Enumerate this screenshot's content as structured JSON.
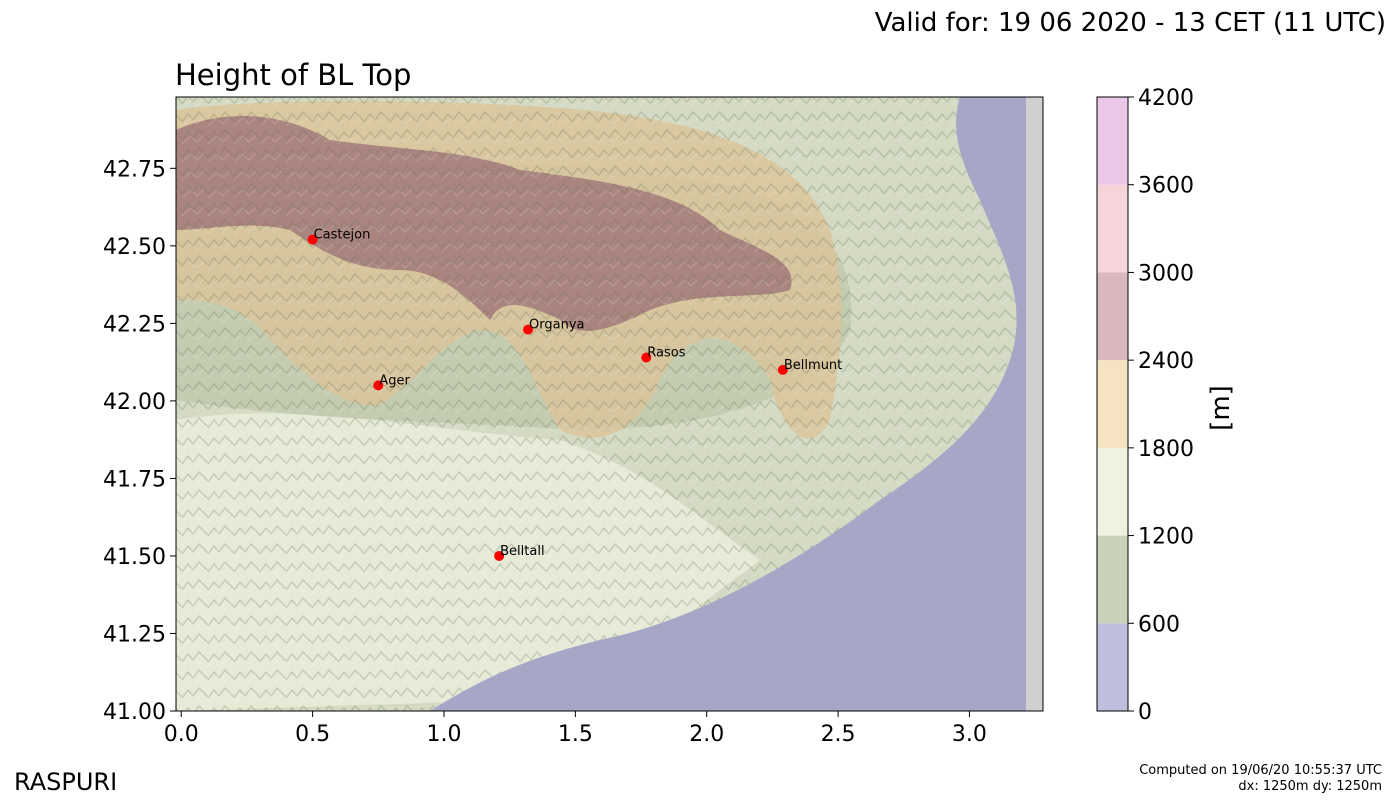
{
  "header": {
    "valid": "Valid for: 19 06 2020 - 13 CET (11 UTC)",
    "title": "Height of BL Top"
  },
  "axes": {
    "x_ticks": [
      "0.0",
      "0.5",
      "1.0",
      "1.5",
      "2.0",
      "2.5",
      "3.0"
    ],
    "x_values": [
      0.0,
      0.5,
      1.0,
      1.5,
      2.0,
      2.5,
      3.0
    ],
    "y_ticks": [
      "41.00",
      "41.25",
      "41.50",
      "41.75",
      "42.00",
      "42.25",
      "42.50",
      "42.75"
    ],
    "y_values": [
      41.0,
      41.25,
      41.5,
      41.75,
      42.0,
      42.25,
      42.5,
      42.75
    ],
    "xlim": [
      -0.02,
      3.28
    ],
    "ylim": [
      41.0,
      42.98
    ]
  },
  "colorbar": {
    "label": "[m]",
    "ticks": [
      "0",
      "600",
      "1200",
      "1800",
      "2400",
      "3000",
      "3600",
      "4200"
    ],
    "colors": [
      "#bfbfdd",
      "#c9d1b8",
      "#eef3df",
      "#f5e3c2",
      "#d8b8bc",
      "#f6d4da",
      "#ebc8e7"
    ]
  },
  "locations": [
    {
      "name": "Castejon",
      "x": 0.5,
      "y": 42.52
    },
    {
      "name": "Organya",
      "x": 1.32,
      "y": 42.23
    },
    {
      "name": "Rasos",
      "x": 1.77,
      "y": 42.14
    },
    {
      "name": "Ager",
      "x": 0.75,
      "y": 42.05
    },
    {
      "name": "Bellmunt",
      "x": 2.29,
      "y": 42.1
    },
    {
      "name": "Belltall",
      "x": 1.21,
      "y": 41.5
    }
  ],
  "footer": {
    "brand": "RASPURI",
    "computed": "Computed on 19/06/20 10:55:37 UTC",
    "resolution": "dx: 1250m dy: 1250m"
  }
}
